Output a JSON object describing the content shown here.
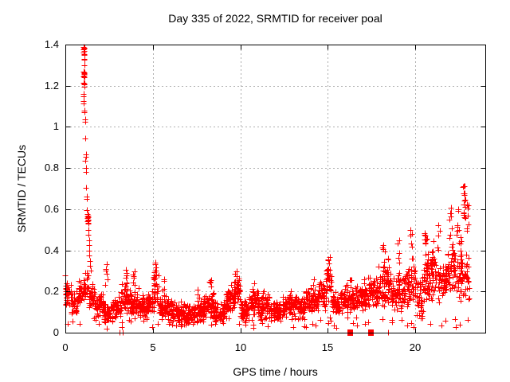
{
  "chart_data": {
    "type": "scatter",
    "title": "Day 335 of 2022, SRMTID for receiver poal",
    "xlabel": "GPS time / hours",
    "ylabel": "SRMTID / TECUs",
    "xlim": [
      0,
      24
    ],
    "ylim": [
      0,
      1.4
    ],
    "xticks": [
      0,
      5,
      10,
      15,
      20
    ],
    "yticks": [
      0,
      0.2,
      0.4,
      0.6,
      0.8,
      1,
      1.2,
      1.4
    ],
    "grid": true,
    "grid_style": "dotted",
    "legend": "none",
    "marker": "plus",
    "marker_color": "#ff0000",
    "grid_color": "#b0b0b0",
    "frame_color": "#000000",
    "seed": 1337,
    "points_per_hour": 92,
    "low_outlier_rate": 0.03,
    "bands": [
      [
        0.0,
        0.35,
        0.12,
        0.27
      ],
      [
        0.35,
        0.75,
        0.06,
        0.22
      ],
      [
        0.75,
        1.0,
        0.12,
        0.26
      ],
      [
        1.0,
        1.35,
        0.14,
        0.3
      ],
      [
        1.35,
        1.7,
        0.1,
        0.24
      ],
      [
        1.7,
        2.2,
        0.07,
        0.2
      ],
      [
        2.2,
        2.7,
        0.04,
        0.16
      ],
      [
        2.7,
        3.2,
        0.06,
        0.18
      ],
      [
        3.2,
        3.7,
        0.09,
        0.26
      ],
      [
        3.7,
        4.2,
        0.08,
        0.24
      ],
      [
        4.2,
        4.7,
        0.06,
        0.18
      ],
      [
        4.7,
        5.05,
        0.09,
        0.22
      ],
      [
        5.05,
        5.35,
        0.1,
        0.3
      ],
      [
        5.35,
        6.0,
        0.06,
        0.18
      ],
      [
        6.0,
        6.6,
        0.04,
        0.16
      ],
      [
        6.6,
        7.3,
        0.03,
        0.15
      ],
      [
        7.3,
        7.9,
        0.04,
        0.17
      ],
      [
        7.9,
        8.5,
        0.06,
        0.21
      ],
      [
        8.5,
        9.2,
        0.04,
        0.16
      ],
      [
        9.2,
        9.6,
        0.08,
        0.24
      ],
      [
        9.6,
        10.0,
        0.1,
        0.28
      ],
      [
        10.0,
        10.5,
        0.05,
        0.17
      ],
      [
        10.5,
        11.1,
        0.07,
        0.22
      ],
      [
        11.1,
        11.7,
        0.06,
        0.19
      ],
      [
        11.7,
        12.4,
        0.05,
        0.16
      ],
      [
        12.4,
        13.1,
        0.07,
        0.19
      ],
      [
        13.1,
        13.7,
        0.06,
        0.18
      ],
      [
        13.7,
        14.5,
        0.09,
        0.23
      ],
      [
        14.5,
        14.9,
        0.1,
        0.27
      ],
      [
        14.9,
        15.25,
        0.12,
        0.33
      ],
      [
        15.25,
        15.9,
        0.08,
        0.21
      ],
      [
        15.9,
        16.6,
        0.09,
        0.24
      ],
      [
        16.6,
        17.3,
        0.1,
        0.25
      ],
      [
        17.3,
        17.9,
        0.11,
        0.29
      ],
      [
        17.9,
        18.6,
        0.12,
        0.34
      ],
      [
        18.6,
        19.4,
        0.1,
        0.29
      ],
      [
        19.4,
        20.05,
        0.12,
        0.34
      ],
      [
        20.05,
        20.45,
        0.06,
        0.28
      ],
      [
        20.45,
        21.25,
        0.14,
        0.4
      ],
      [
        21.25,
        21.85,
        0.14,
        0.36
      ],
      [
        21.85,
        22.35,
        0.17,
        0.46
      ],
      [
        22.35,
        23.1,
        0.14,
        0.4
      ]
    ],
    "columns": [
      [
        2.35,
        0.2,
        0.345,
        8
      ],
      [
        3.5,
        0.22,
        0.33,
        7
      ],
      [
        3.95,
        0.2,
        0.3,
        6
      ],
      [
        4.4,
        0.16,
        0.22,
        4
      ],
      [
        5.15,
        0.24,
        0.345,
        9
      ],
      [
        5.6,
        0.18,
        0.26,
        5
      ],
      [
        7.6,
        0.14,
        0.22,
        4
      ],
      [
        8.3,
        0.18,
        0.27,
        5
      ],
      [
        9.75,
        0.22,
        0.3,
        6
      ],
      [
        10.75,
        0.18,
        0.25,
        4
      ],
      [
        11.3,
        0.16,
        0.22,
        3
      ],
      [
        12.9,
        0.16,
        0.21,
        3
      ],
      [
        14.2,
        0.18,
        0.26,
        4
      ],
      [
        15.05,
        0.26,
        0.375,
        8
      ],
      [
        16.3,
        0.2,
        0.28,
        4
      ],
      [
        17.1,
        0.2,
        0.28,
        4
      ],
      [
        18.2,
        0.3,
        0.48,
        8
      ],
      [
        18.45,
        0.28,
        0.42,
        5
      ],
      [
        19.05,
        0.28,
        0.45,
        6
      ],
      [
        19.8,
        0.32,
        0.5,
        7
      ],
      [
        20.6,
        0.34,
        0.55,
        9
      ],
      [
        21.05,
        0.32,
        0.52,
        6
      ],
      [
        21.35,
        0.4,
        0.57,
        5
      ],
      [
        22.0,
        0.42,
        0.63,
        9
      ],
      [
        22.4,
        0.45,
        0.62,
        6
      ],
      [
        22.55,
        0.35,
        0.55,
        6
      ],
      [
        22.8,
        0.55,
        0.75,
        16
      ],
      [
        23.0,
        0.45,
        0.66,
        7
      ]
    ],
    "spike_points": [
      [
        1.05,
        1.39
      ],
      [
        1.08,
        1.385
      ],
      [
        1.1,
        1.38
      ],
      [
        1.07,
        1.375
      ],
      [
        1.09,
        1.37
      ],
      [
        1.06,
        1.36
      ],
      [
        1.1,
        1.355
      ],
      [
        1.08,
        1.35
      ],
      [
        1.09,
        1.33
      ],
      [
        1.11,
        1.325
      ],
      [
        1.1,
        1.3
      ],
      [
        1.07,
        1.27
      ],
      [
        1.09,
        1.265
      ],
      [
        1.08,
        1.26
      ],
      [
        1.1,
        1.255
      ],
      [
        1.09,
        1.25
      ],
      [
        1.07,
        1.245
      ],
      [
        1.11,
        1.24
      ],
      [
        1.06,
        1.215
      ],
      [
        1.08,
        1.21
      ],
      [
        1.09,
        1.205
      ],
      [
        1.1,
        1.195
      ],
      [
        1.04,
        1.16
      ],
      [
        1.05,
        1.15
      ],
      [
        1.03,
        1.125
      ],
      [
        1.05,
        1.115
      ],
      [
        1.08,
        1.08
      ],
      [
        1.1,
        1.07
      ],
      [
        1.12,
        1.035
      ],
      [
        1.13,
        1.025
      ],
      [
        1.15,
        0.945
      ],
      [
        1.17,
        0.865
      ],
      [
        1.18,
        0.855
      ],
      [
        1.16,
        0.835
      ],
      [
        1.18,
        0.8
      ],
      [
        1.19,
        0.78
      ],
      [
        1.2,
        0.705
      ],
      [
        1.21,
        0.66
      ],
      [
        1.22,
        0.65
      ],
      [
        1.24,
        0.595
      ],
      [
        1.28,
        0.575
      ],
      [
        1.3,
        0.57
      ],
      [
        1.29,
        0.565
      ],
      [
        1.31,
        0.56
      ],
      [
        1.28,
        0.555
      ],
      [
        1.3,
        0.55
      ],
      [
        1.32,
        0.545
      ],
      [
        1.29,
        0.54
      ],
      [
        1.31,
        0.535
      ],
      [
        1.3,
        0.528
      ],
      [
        1.33,
        0.5
      ],
      [
        1.34,
        0.475
      ],
      [
        1.35,
        0.45
      ],
      [
        1.36,
        0.425
      ],
      [
        1.37,
        0.4
      ],
      [
        1.38,
        0.375
      ],
      [
        1.4,
        0.35
      ],
      [
        1.42,
        0.325
      ],
      [
        1.44,
        0.3
      ],
      [
        0.02,
        0.28
      ],
      [
        2.37,
        0.02
      ]
    ],
    "zero_markers": [
      {
        "x": 3.1,
        "shape": "plus"
      },
      {
        "x": 3.3,
        "shape": "plus"
      },
      {
        "x": 16.25,
        "shape": "square"
      },
      {
        "x": 17.45,
        "shape": "square"
      },
      {
        "x": 18.45,
        "shape": "plus"
      }
    ]
  }
}
